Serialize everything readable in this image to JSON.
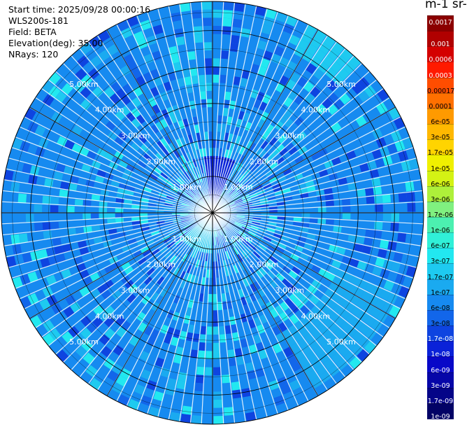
{
  "header": {
    "start_time": "Start time: 2025/09/28 00:00:16",
    "instrument": "WLS200s-181",
    "field": "Field: BETA",
    "elevation": "Elevation(deg): 35.00",
    "nrays": "NRays: 120"
  },
  "colorbar": {
    "unit_title": "m-1 sr-",
    "labels": [
      "0.0017",
      "0.001",
      "0.0006",
      "0.0003",
      "0.00017",
      "0.0001",
      "6e-05",
      "3e-05",
      "1.7e-05",
      "1e-05",
      "6e-06",
      "3e-06",
      "1.7e-06",
      "1e-06",
      "6e-07",
      "3e-07",
      "1.7e-07",
      "1e-07",
      "6e-08",
      "3e-08",
      "1.7e-08",
      "1e-08",
      "6e-09",
      "3e-09",
      "1.7e-09",
      "1e-09"
    ],
    "colors": [
      "#8b0000",
      "#b00000",
      "#d40000",
      "#ff1a00",
      "#ff4d00",
      "#ff7000",
      "#ff9a00",
      "#ffb800",
      "#ffd400",
      "#f0f000",
      "#d4f214",
      "#aef03a",
      "#80f080",
      "#4cf0b0",
      "#30f0d8",
      "#22e8f0",
      "#1ecaf0",
      "#1aaaf0",
      "#168af0",
      "#1266ea",
      "#0e44e0",
      "#0a22d8",
      "#0808c8",
      "#0606a8",
      "#040488",
      "#020266"
    ],
    "text_colors": [
      "#ffffff",
      "#ffffff",
      "#ffffff",
      "#ffffff",
      "#000000",
      "#000000",
      "#000000",
      "#000000",
      "#000000",
      "#000000",
      "#000000",
      "#000000",
      "#000000",
      "#000000",
      "#000000",
      "#000000",
      "#000000",
      "#000000",
      "#000000",
      "#000000",
      "#ffffff",
      "#ffffff",
      "#ffffff",
      "#ffffff",
      "#ffffff",
      "#ffffff"
    ]
  },
  "chart_data": {
    "type": "heatmap",
    "projection": "polar-ppi",
    "nrays": 120,
    "ring_labels": [
      "1.00km",
      "2.00km",
      "3.00km",
      "4.00km",
      "5.00km"
    ],
    "ring_ranges_km": [
      1,
      2,
      3,
      4,
      5
    ],
    "max_range_km": 5.8,
    "background_value": "6e-08",
    "patches": [
      {
        "azimuth_deg": [
          115,
          150
        ],
        "range_km": [
          3.8,
          5.6
        ],
        "value": "1e-07"
      },
      {
        "azimuth_deg": [
          28,
          45
        ],
        "range_km": [
          4.8,
          5.8
        ],
        "value": "1.7e-07"
      },
      {
        "azimuth_deg": [
          180,
          230
        ],
        "range_km": [
          0.1,
          1.2
        ],
        "value": "1.7e-07"
      },
      {
        "azimuth_deg": [
          -10,
          25
        ],
        "range_km": [
          0.05,
          1.5
        ],
        "value": "1e-08"
      }
    ]
  }
}
